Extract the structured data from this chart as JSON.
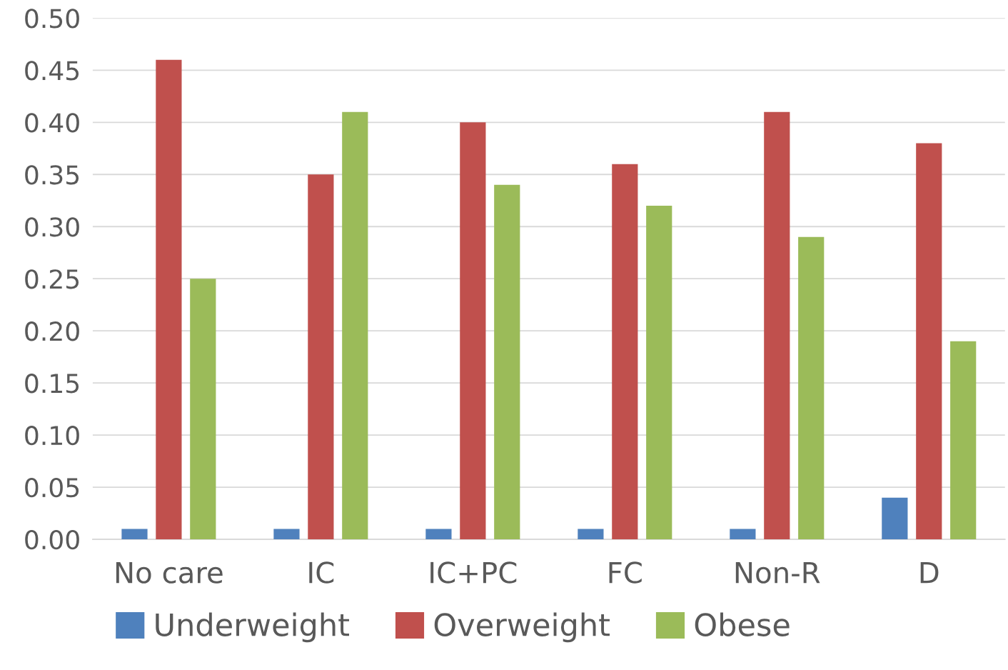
{
  "chart_data": {
    "type": "bar",
    "categories": [
      "No care",
      "IC",
      "IC+PC",
      "FC",
      "Non-R",
      "D"
    ],
    "series": [
      {
        "name": "Underweight",
        "color": "#4f81bd",
        "values": [
          0.01,
          0.01,
          0.01,
          0.01,
          0.01,
          0.04
        ]
      },
      {
        "name": "Overweight",
        "color": "#c0504d",
        "values": [
          0.46,
          0.35,
          0.4,
          0.36,
          0.41,
          0.38
        ]
      },
      {
        "name": "Obese",
        "color": "#9bbb59",
        "values": [
          0.25,
          0.41,
          0.34,
          0.32,
          0.29,
          0.19
        ]
      }
    ],
    "ylim": [
      0,
      0.5
    ],
    "yticks": [
      {
        "value": 0,
        "label": "0.00"
      },
      {
        "value": 0.05,
        "label": "0.05"
      },
      {
        "value": 0.1,
        "label": "0.10"
      },
      {
        "value": 0.15,
        "label": "0.15"
      },
      {
        "value": 0.2,
        "label": "0.20"
      },
      {
        "value": 0.25,
        "label": "0.25"
      },
      {
        "value": 0.3,
        "label": "0.30"
      },
      {
        "value": 0.35,
        "label": "0.35"
      },
      {
        "value": 0.4,
        "label": "0.40"
      },
      {
        "value": 0.45,
        "label": "0.45"
      },
      {
        "value": 0.5,
        "label": "0.50"
      }
    ],
    "grid": "y",
    "legend": "bottom"
  }
}
